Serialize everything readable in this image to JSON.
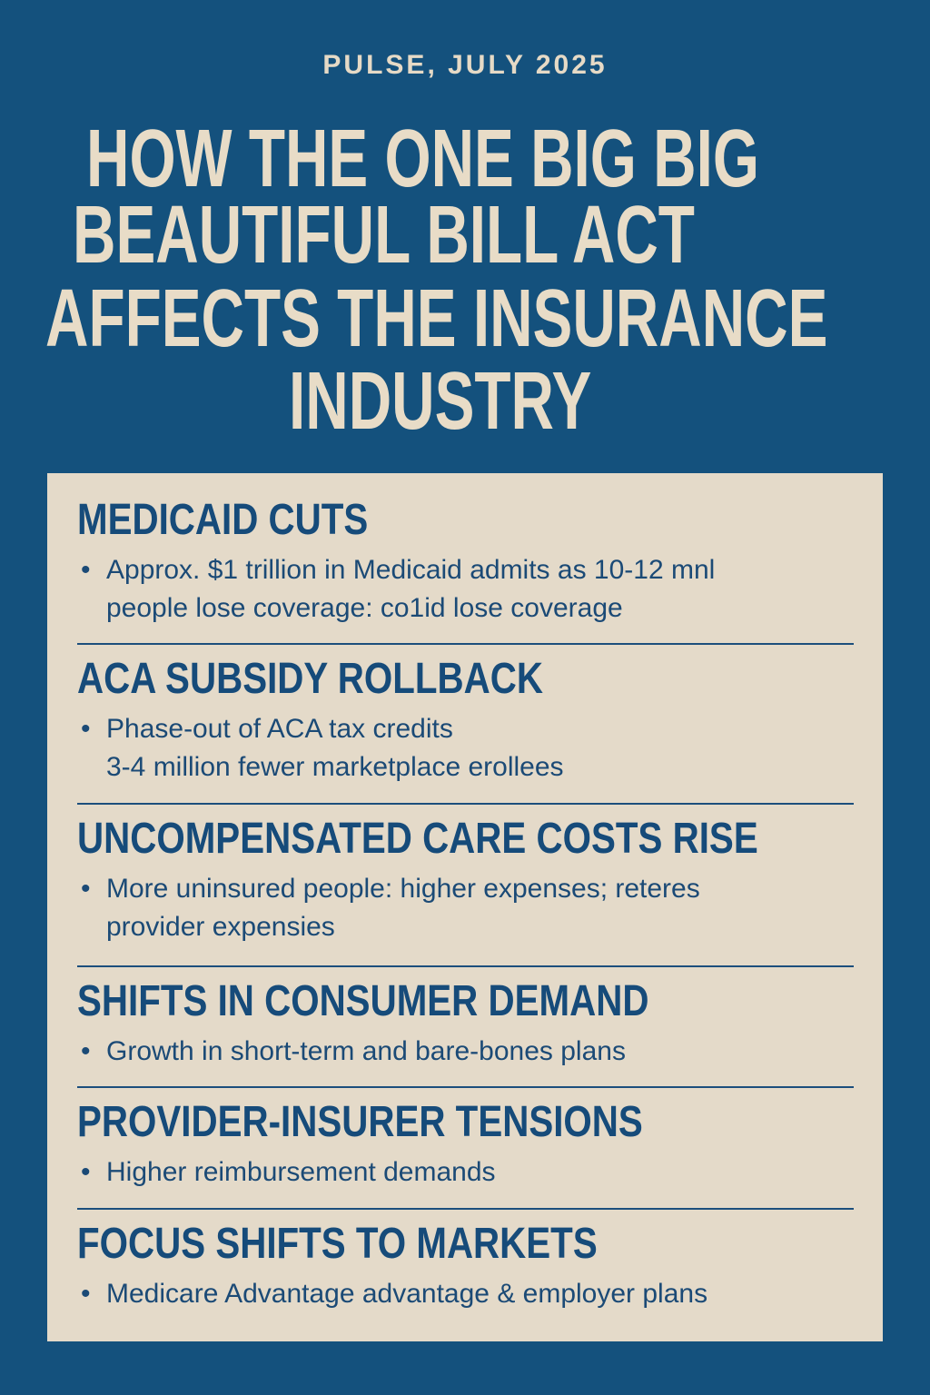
{
  "kicker": "PULSE, JULY 2025",
  "title_lines": [
    "HOW THE ONE BIG BIG",
    "BEAUTIFUL BILL ACT",
    "AFFECTS THE INSURANCE",
    "INDUSTRY"
  ],
  "colors": {
    "background": "#14517d",
    "card": "#e4dac9",
    "accent_text": "#164b7a",
    "title_text": "#e8dcc7"
  },
  "sections": [
    {
      "heading": "MEDICAID CUTS",
      "lines": [
        "Approx. $1 trillion in Medicaid admits as 10-12 mnl",
        "people lose coverage: co1id lose coverage"
      ]
    },
    {
      "heading": "ACA SUBSIDY ROLLBACK",
      "lines": [
        "Phase-out of ACA tax credits",
        "3-4 million fewer marketplace erollees"
      ]
    },
    {
      "heading": "UNCOMPENSATED CARE COSTS RISE",
      "lines": [
        "More uninsured people: higher expenses; reteres",
        "provider expensies"
      ]
    },
    {
      "heading": "SHIFTS IN CONSUMER DEMAND",
      "lines": [
        "Growth in short-term and bare-bones plans"
      ]
    },
    {
      "heading": "PROVIDER-INSURER TENSIONS",
      "lines": [
        "Higher reimbursement demands"
      ]
    },
    {
      "heading": "FOCUS SHIFTS TO MARKETS",
      "lines": [
        "Medicare Advantage advantage & employer plans"
      ]
    }
  ]
}
